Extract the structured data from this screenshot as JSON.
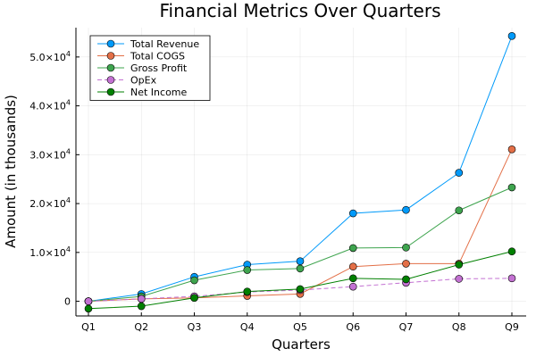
{
  "chart_data": {
    "type": "line",
    "title": "Financial Metrics Over Quarters",
    "xlabel": "Quarters",
    "ylabel": "Amount (in thousands)",
    "categories": [
      "Q1",
      "Q2",
      "Q3",
      "Q4",
      "Q5",
      "Q6",
      "Q7",
      "Q8",
      "Q9"
    ],
    "ylim": [
      -3000,
      56000
    ],
    "y_ticks": [
      0,
      10000,
      20000,
      30000,
      40000,
      50000
    ],
    "y_tick_labels": [
      {
        "mantissa": "0",
        "exp": ""
      },
      {
        "mantissa": "1.0×10",
        "exp": "4"
      },
      {
        "mantissa": "2.0×10",
        "exp": "4"
      },
      {
        "mantissa": "3.0×10",
        "exp": "4"
      },
      {
        "mantissa": "4.0×10",
        "exp": "4"
      },
      {
        "mantissa": "5.0×10",
        "exp": "4"
      }
    ],
    "grid": true,
    "legend_position": "top-left",
    "series": [
      {
        "name": "Total Revenue",
        "color": "#009AFA",
        "dashed": false,
        "values": [
          0,
          1500,
          5000,
          7500,
          8200,
          18000,
          18700,
          26300,
          54300
        ]
      },
      {
        "name": "Total COGS",
        "color": "#E36F47",
        "dashed": false,
        "values": [
          0,
          500,
          700,
          1100,
          1500,
          7100,
          7700,
          7700,
          31100
        ]
      },
      {
        "name": "Gross Profit",
        "color": "#3EA44E",
        "dashed": false,
        "values": [
          0,
          1000,
          4300,
          6400,
          6700,
          10900,
          11000,
          18600,
          23300
        ]
      },
      {
        "name": "OpEx",
        "color": "#C371D2",
        "dashed": true,
        "values": [
          0,
          500,
          1000,
          1900,
          2300,
          3000,
          3800,
          4600,
          4700
        ]
      },
      {
        "name": "Net Income",
        "color": "#008000",
        "dashed": false,
        "values": [
          -1500,
          -1000,
          700,
          2000,
          2500,
          4700,
          4500,
          7500,
          10200
        ]
      }
    ]
  }
}
